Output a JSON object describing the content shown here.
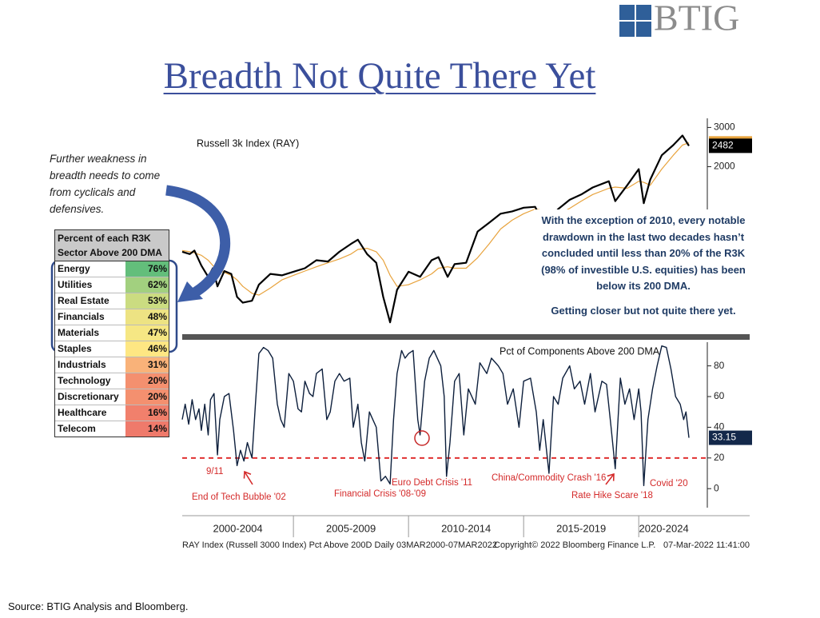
{
  "header": {
    "logo": "BTIG",
    "title": "Breadth Not Quite There Yet"
  },
  "note": "Further weakness in breadth needs to come from cyclicals and defensives.",
  "table": {
    "header": "Percent of each R3K Sector Above 200 DMA",
    "rows": [
      {
        "sector": "Energy",
        "value": "76%",
        "color": "#63be7b"
      },
      {
        "sector": "Utilities",
        "value": "62%",
        "color": "#a2d07f"
      },
      {
        "sector": "Real Estate",
        "value": "53%",
        "color": "#cbdc81"
      },
      {
        "sector": "Financials",
        "value": "48%",
        "color": "#ede383"
      },
      {
        "sector": "Materials",
        "value": "47%",
        "color": "#f6e784"
      },
      {
        "sector": "Staples",
        "value": "46%",
        "color": "#fee783"
      },
      {
        "sector": "Industrials",
        "value": "31%",
        "color": "#f9b279"
      },
      {
        "sector": "Technology",
        "value": "20%",
        "color": "#f4906f"
      },
      {
        "sector": "Discretionary",
        "value": "20%",
        "color": "#f4906f"
      },
      {
        "sector": "Healthcare",
        "value": "16%",
        "color": "#f1806c"
      },
      {
        "sector": "Telecom",
        "value": "14%",
        "color": "#ef7a6b"
      }
    ]
  },
  "commentary": [
    "With the exception of 2010, every notable drawdown in the last two decades hasn’t concluded until less than 20% of the R3K (98% of investible U.S. equities) has been below its 200 DMA.",
    "Getting closer but not quite there yet."
  ],
  "chart_data": [
    {
      "type": "line",
      "title": "Russell 3k Index (RAY)",
      "log_scale": true,
      "xlim": [
        2000.17,
        2022.18
      ],
      "ylim": [
        378,
        3380
      ],
      "yticks": [
        3000,
        2000
      ],
      "x": [
        2000.17,
        2000.5,
        2000.7,
        2001.0,
        2001.3,
        2001.5,
        2001.7,
        2002.0,
        2002.3,
        2002.55,
        2002.8,
        2003.2,
        2003.5,
        2004.0,
        2004.5,
        2005.0,
        2005.5,
        2006.0,
        2006.5,
        2007.0,
        2007.5,
        2007.8,
        2008.2,
        2008.6,
        2008.9,
        2009.2,
        2009.5,
        2010.0,
        2010.5,
        2011.0,
        2011.3,
        2011.7,
        2012.0,
        2012.5,
        2013.0,
        2013.5,
        2014.0,
        2014.5,
        2015.0,
        2015.5,
        2015.7,
        2016.1,
        2016.5,
        2017.0,
        2017.5,
        2018.0,
        2018.7,
        2018.98,
        2019.5,
        2020.0,
        2020.22,
        2020.5,
        2021.0,
        2021.5,
        2021.9,
        2022.18
      ],
      "series": [
        {
          "color": "#000000",
          "values": [
            830,
            810,
            840,
            720,
            640,
            700,
            580,
            680,
            660,
            520,
            490,
            500,
            590,
            660,
            650,
            675,
            700,
            760,
            750,
            830,
            900,
            940,
            810,
            740,
            520,
            400,
            560,
            675,
            640,
            760,
            785,
            640,
            730,
            740,
            1023,
            1120,
            1230,
            1260,
            1308,
            1320,
            1200,
            1150,
            1290,
            1420,
            1500,
            1613,
            1720,
            1400,
            1650,
            1950,
            1370,
            1750,
            2250,
            2500,
            2760,
            2482
          ]
        },
        {
          "color": "#e8a33d",
          "values": [
            840,
            830,
            820,
            800,
            760,
            720,
            690,
            670,
            650,
            620,
            580,
            540,
            530,
            570,
            620,
            650,
            680,
            710,
            740,
            770,
            810,
            850,
            860,
            830,
            760,
            650,
            580,
            590,
            620,
            660,
            700,
            710,
            700,
            700,
            780,
            900,
            1050,
            1150,
            1230,
            1290,
            1280,
            1240,
            1220,
            1300,
            1400,
            1500,
            1600,
            1620,
            1600,
            1720,
            1700,
            1650,
            1950,
            2250,
            2500,
            2560
          ]
        }
      ]
    },
    {
      "type": "line",
      "title": "Pct of Components Above 200 DMA",
      "xlim": [
        2000.17,
        2022.18
      ],
      "ylim": [
        -15,
        97
      ],
      "yticks": [
        0,
        20,
        40,
        60,
        80
      ],
      "xticks": [
        {
          "value": 2000,
          "label": "2000-2004"
        },
        {
          "value": 2005,
          "label": "2005-2009"
        },
        {
          "value": 2010,
          "label": "2010-2014"
        },
        {
          "value": 2015,
          "label": "2015-2019"
        },
        {
          "value": 2020,
          "label": "2020-2024"
        }
      ],
      "reference_line": {
        "value": 20,
        "color": "#e03030"
      },
      "x": [
        2000.17,
        2000.3,
        2000.45,
        2000.6,
        2000.75,
        2000.9,
        2001.0,
        2001.15,
        2001.3,
        2001.4,
        2001.55,
        2001.7,
        2001.8,
        2002.0,
        2002.2,
        2002.4,
        2002.55,
        2002.7,
        2002.85,
        2003.0,
        2003.2,
        2003.35,
        2003.5,
        2003.7,
        2003.9,
        2004.1,
        2004.3,
        2004.45,
        2004.6,
        2004.8,
        2005.0,
        2005.2,
        2005.35,
        2005.5,
        2005.7,
        2005.85,
        2006.0,
        2006.25,
        2006.45,
        2006.6,
        2006.8,
        2007.0,
        2007.2,
        2007.45,
        2007.6,
        2007.8,
        2007.95,
        2008.1,
        2008.3,
        2008.45,
        2008.6,
        2008.8,
        2009.0,
        2009.2,
        2009.35,
        2009.5,
        2009.7,
        2009.85,
        2010.0,
        2010.2,
        2010.4,
        2010.5,
        2010.7,
        2010.9,
        2011.1,
        2011.4,
        2011.55,
        2011.65,
        2011.8,
        2012.0,
        2012.2,
        2012.4,
        2012.6,
        2012.9,
        2013.1,
        2013.4,
        2013.6,
        2013.9,
        2014.1,
        2014.3,
        2014.55,
        2014.8,
        2015.0,
        2015.3,
        2015.55,
        2015.7,
        2015.85,
        2016.1,
        2016.3,
        2016.5,
        2016.7,
        2017.0,
        2017.2,
        2017.45,
        2017.65,
        2017.9,
        2018.1,
        2018.4,
        2018.6,
        2018.8,
        2018.98,
        2019.2,
        2019.4,
        2019.6,
        2019.8,
        2020.0,
        2020.1,
        2020.22,
        2020.4,
        2020.6,
        2020.8,
        2021.0,
        2021.2,
        2021.4,
        2021.6,
        2021.8,
        2021.95,
        2022.05,
        2022.18
      ],
      "series": [
        {
          "color": "#0d1f3c",
          "values": [
            45,
            55,
            42,
            58,
            45,
            52,
            38,
            55,
            35,
            58,
            62,
            22,
            45,
            60,
            62,
            38,
            15,
            25,
            18,
            30,
            20,
            55,
            88,
            92,
            90,
            85,
            55,
            45,
            40,
            75,
            70,
            52,
            50,
            70,
            62,
            60,
            75,
            78,
            45,
            50,
            70,
            75,
            70,
            72,
            40,
            55,
            30,
            18,
            50,
            45,
            40,
            5,
            8,
            3,
            45,
            75,
            90,
            85,
            88,
            90,
            45,
            35,
            70,
            85,
            90,
            80,
            60,
            8,
            30,
            70,
            75,
            35,
            65,
            55,
            82,
            75,
            85,
            80,
            75,
            55,
            65,
            40,
            70,
            72,
            50,
            25,
            45,
            10,
            60,
            55,
            72,
            80,
            65,
            70,
            55,
            75,
            50,
            70,
            68,
            40,
            13,
            72,
            55,
            65,
            45,
            65,
            50,
            2,
            45,
            65,
            80,
            93,
            92,
            78,
            60,
            55,
            45,
            50,
            33.15
          ]
        }
      ],
      "annotations": [
        "9/11",
        "End of Tech Bubble '02",
        "Financial Crisis '08-'09",
        "Euro Debt Crisis '11",
        "China/Commodity Crash '16",
        "Rate Hike Scare '18",
        "Covid '20"
      ]
    }
  ],
  "footer": {
    "left": "RAY Index (Russell 3000 Index) Pct Above 200D  Daily 03MAR2000-07MAR2022",
    "copyright": "Copyright© 2022 Bloomberg Finance L.P.",
    "timestamp": "07-Mar-2022 11:41:00"
  },
  "source": "Source: BTIG Analysis and Bloomberg."
}
